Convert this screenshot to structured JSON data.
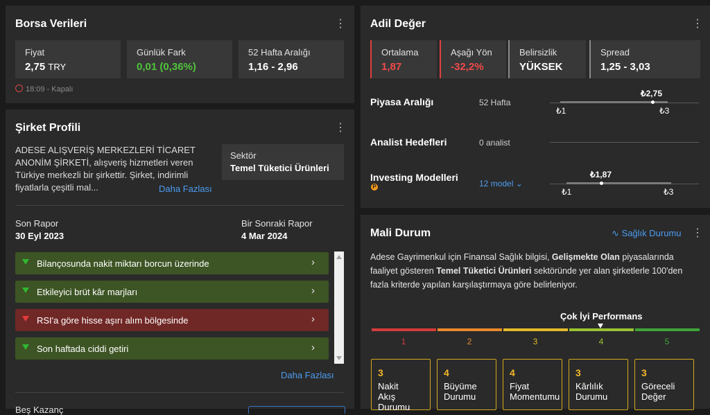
{
  "borsa": {
    "title": "Borsa Verileri",
    "stats": [
      {
        "label": "Fiyat",
        "value": "2,75",
        "unit": "TRY"
      },
      {
        "label": "Günlük Fark",
        "value": "0,01 (0,36%)"
      },
      {
        "label": "52 Hafta Aralığı",
        "value": "1,16 - 2,96"
      }
    ],
    "status": "18:09 - Kapalı"
  },
  "profil": {
    "title": "Şirket Profili",
    "description": "ADESE ALIŞVERİŞ MERKEZLERİ TİCARET ANONİM ŞİRKETİ, alışveriş hizmetleri veren Türkiye merkezli bir şirkettir. Şirket, indirimli fiyatlarla çeşitli mal...",
    "more": "Daha Fazlası",
    "sector_label": "Sektör",
    "sector_value": "Temel Tüketici Ürünleri",
    "last_report_label": "Son Rapor",
    "last_report_value": "30 Eyl 2023",
    "next_report_label": "Bir Sonraki Rapor",
    "next_report_value": "4 Mar 2024",
    "alerts": [
      {
        "text": "Bilançosunda nakit miktarı borcun üzerinde",
        "type": "positive"
      },
      {
        "text": "Etkileyici brüt kâr marjları",
        "type": "positive"
      },
      {
        "text": "RSI'a göre hisse aşırı alım bölgesinde",
        "type": "negative"
      },
      {
        "text": "Son haftada ciddi getiri",
        "type": "positive"
      }
    ],
    "alerts_more": "Daha Fazlası",
    "cut_label": "Beş Kazanç"
  },
  "adil": {
    "title": "Adil Değer",
    "stats": [
      {
        "label": "Ortalama",
        "value": "1,87",
        "accent": "#e04040"
      },
      {
        "label": "Aşağı Yön",
        "value": "-32,2%",
        "accent": "#e04040"
      },
      {
        "label": "Belirsizlik",
        "value": "YÜKSEK",
        "accent": "#8a8a8a"
      },
      {
        "label": "Spread",
        "value": "1,25 - 3,03",
        "accent": "#8a8a8a"
      }
    ],
    "rows": [
      {
        "label": "Piyasa Aralığı",
        "sub": "52 Hafta",
        "marker": "₺2,75",
        "min": "₺1",
        "max": "₺3"
      },
      {
        "label": "Analist Hedefleri",
        "sub": "0 analist"
      },
      {
        "label": "Investing Modelleri",
        "sub": "12 model",
        "marker": "₺1,87",
        "min": "₺1",
        "max": "₺3"
      }
    ]
  },
  "mali": {
    "title": "Mali Durum",
    "health_link": "Sağlık Durumu",
    "desc_1": "Adese Gayrimenkul için Finansal Sağlık bilgisi, ",
    "desc_bold_1": "Gelişmekte Olan",
    "desc_2": " piyasalarında faaliyet gösteren ",
    "desc_bold_2": "Temel Tüketici Ürünleri",
    "desc_3": " sektöründe yer alan şirketlerle 100'den fazla kriterde yapılan karşılaştırmaya göre belirleniyor.",
    "perf_label": "Çok İyi Performans",
    "scale": [
      {
        "n": "1",
        "color": "#d63a3a"
      },
      {
        "n": "2",
        "color": "#e8892b"
      },
      {
        "n": "3",
        "color": "#e2bb2c"
      },
      {
        "n": "4",
        "color": "#9ac431"
      },
      {
        "n": "5",
        "color": "#3ea33a"
      }
    ],
    "scores": [
      {
        "n": "3",
        "label": "Nakit Akış Durumu"
      },
      {
        "n": "4",
        "label": "Büyüme Durumu"
      },
      {
        "n": "4",
        "label": "Fiyat Momentumu"
      },
      {
        "n": "3",
        "label": "Kârlılık Durumu"
      },
      {
        "n": "3",
        "label": "Göreceli Değer"
      }
    ]
  }
}
